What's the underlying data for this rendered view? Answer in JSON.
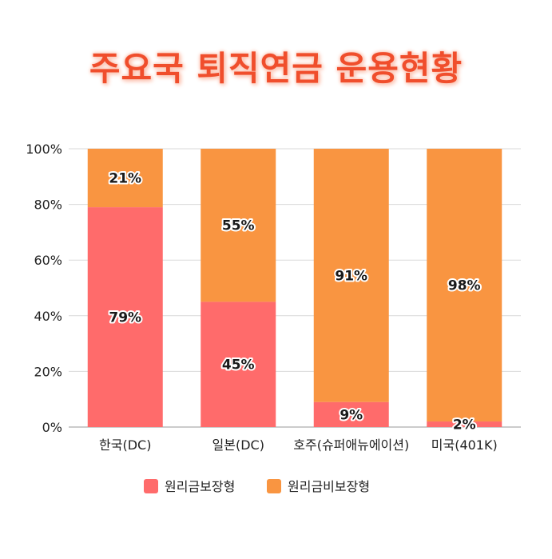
{
  "colors": {
    "series1": "#ff6b6b",
    "series2": "#f99541",
    "title": "#f04e2c",
    "grid": "#d9d9d9"
  },
  "chart_data": {
    "type": "bar",
    "stacked": true,
    "title": "주요국 퇴직연금 운용현황",
    "xlabel": "",
    "ylabel": "",
    "ylim": [
      0,
      100
    ],
    "yticks": [
      "0%",
      "20%",
      "40%",
      "60%",
      "80%",
      "100%"
    ],
    "categories": [
      "한국(DC)",
      "일본(DC)",
      "호주(슈퍼애뉴에이션)",
      "미국(401K)"
    ],
    "series": [
      {
        "name": "원리금보장형",
        "values": [
          79,
          45,
          9,
          2
        ],
        "labels": [
          "79%",
          "45%",
          "9%",
          "2%"
        ]
      },
      {
        "name": "원리금비보장형",
        "values": [
          21,
          55,
          91,
          98
        ],
        "labels": [
          "21%",
          "55%",
          "91%",
          "98%"
        ]
      }
    ],
    "grid": true,
    "legend_position": "bottom"
  }
}
